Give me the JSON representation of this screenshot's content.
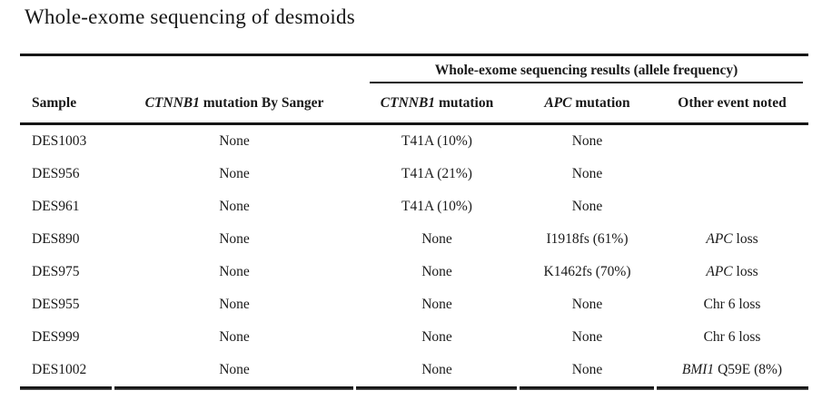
{
  "colors": {
    "text": "#1a1a1a",
    "rule": "#161616",
    "background": "#ffffff"
  },
  "title": "Whole-exome sequencing of desmoids",
  "table": {
    "span_header": "Whole-exome sequencing results (allele frequency)",
    "headers": {
      "sample": "Sample",
      "sanger_gene": "CTNNB1",
      "sanger_rest": " mutation By Sanger",
      "ctnnb1_gene": "CTNNB1",
      "ctnnb1_rest": " mutation",
      "apc_gene": "APC",
      "apc_rest": " mutation",
      "other": "Other event noted"
    },
    "rows": [
      {
        "sample": "DES1003",
        "sanger": "None",
        "ctnnb1": "T41A (10%)",
        "apc": "None",
        "other_italic": "",
        "other_rest": ""
      },
      {
        "sample": "DES956",
        "sanger": "None",
        "ctnnb1": "T41A (21%)",
        "apc": "None",
        "other_italic": "",
        "other_rest": ""
      },
      {
        "sample": "DES961",
        "sanger": "None",
        "ctnnb1": "T41A (10%)",
        "apc": "None",
        "other_italic": "",
        "other_rest": ""
      },
      {
        "sample": "DES890",
        "sanger": "None",
        "ctnnb1": "None",
        "apc": "I1918fs (61%)",
        "other_italic": "APC",
        "other_rest": " loss"
      },
      {
        "sample": "DES975",
        "sanger": "None",
        "ctnnb1": "None",
        "apc": "K1462fs (70%)",
        "other_italic": "APC",
        "other_rest": " loss"
      },
      {
        "sample": "DES955",
        "sanger": "None",
        "ctnnb1": "None",
        "apc": "None",
        "other_italic": "",
        "other_rest": "Chr 6 loss"
      },
      {
        "sample": "DES999",
        "sanger": "None",
        "ctnnb1": "None",
        "apc": "None",
        "other_italic": "",
        "other_rest": "Chr 6 loss"
      },
      {
        "sample": "DES1002",
        "sanger": "None",
        "ctnnb1": "None",
        "apc": "None",
        "other_italic": "BMI1",
        "other_rest": " Q59E (8%)"
      }
    ]
  }
}
